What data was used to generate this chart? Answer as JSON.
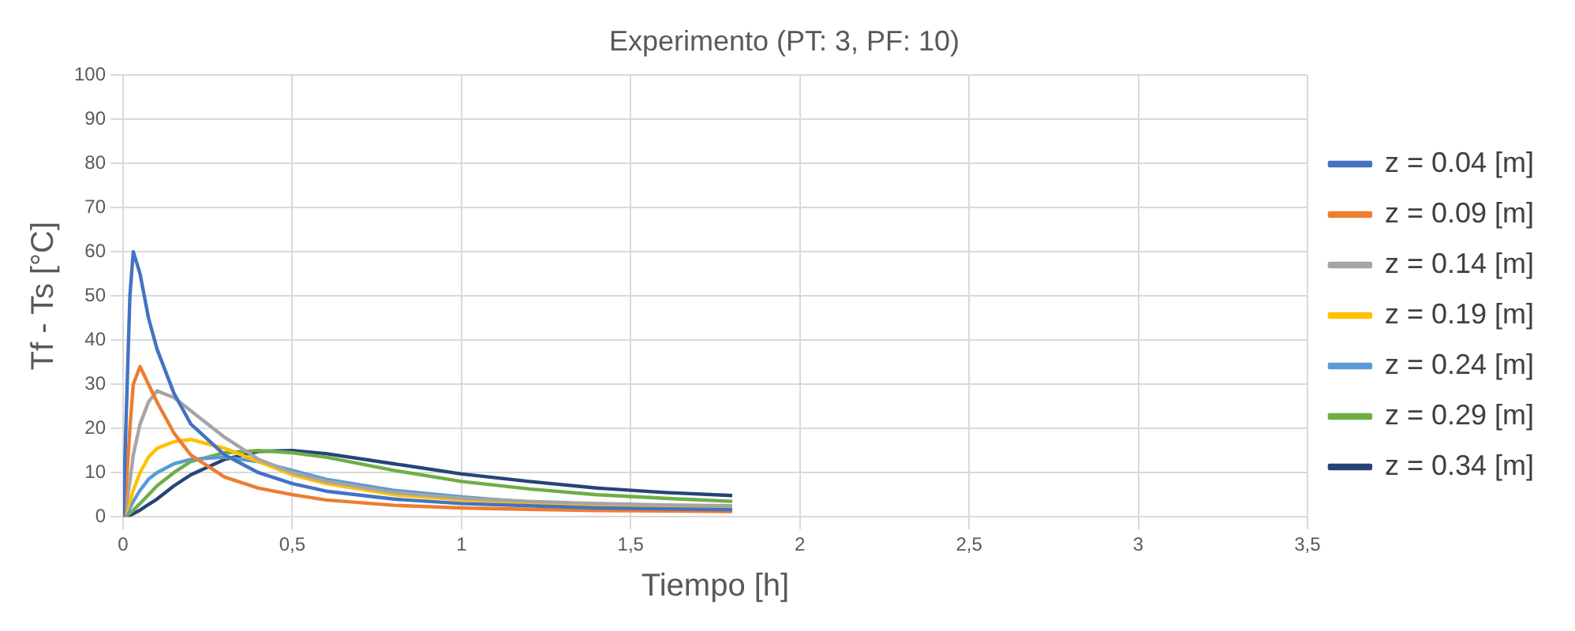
{
  "chart_data": {
    "type": "line",
    "title": "Experimento (PT: 3, PF: 10)",
    "xlabel": "Tiempo [h]",
    "ylabel": "Tf - Ts [°C]",
    "x": [
      0,
      0.01,
      0.02,
      0.03,
      0.05,
      0.075,
      0.1,
      0.15,
      0.2,
      0.3,
      0.4,
      0.5,
      0.6,
      0.8,
      1.0,
      1.2,
      1.4,
      1.6,
      1.8
    ],
    "xlim": [
      0,
      3.5
    ],
    "xticks": [
      0,
      {
        "value": 0.5,
        "label": "0,5"
      },
      1,
      {
        "value": 1.5,
        "label": "1,5"
      },
      2,
      {
        "value": 2.5,
        "label": "2,5"
      },
      3,
      {
        "value": 3.5,
        "label": "3,5"
      }
    ],
    "ylim": [
      0,
      100
    ],
    "yticks": [
      0,
      10,
      20,
      30,
      40,
      50,
      60,
      70,
      80,
      90,
      100
    ],
    "grid": true,
    "legend": "right",
    "marker": "none",
    "line_style": "solid",
    "series": [
      {
        "name": "z = 0.04 [m]",
        "color": "#4472c4",
        "values": [
          0,
          25,
          50,
          60,
          55,
          45,
          38,
          28,
          21,
          14,
          10,
          7.5,
          5.8,
          4,
          3,
          2.5,
          2,
          1.8,
          1.6
        ]
      },
      {
        "name": "z = 0.09 [m]",
        "color": "#ed7d31",
        "values": [
          0,
          8,
          20,
          30,
          34,
          30,
          26,
          19,
          14,
          9,
          6.5,
          5,
          3.8,
          2.6,
          2,
          1.7,
          1.4,
          1.3,
          1.2
        ]
      },
      {
        "name": "z = 0.14 [m]",
        "color": "#a5a5a5",
        "values": [
          0,
          3,
          8,
          14,
          21,
          26,
          28.5,
          27,
          24,
          18,
          13,
          10,
          8,
          5.5,
          4.2,
          3.5,
          3,
          2.7,
          2.5
        ]
      },
      {
        "name": "z = 0.19 [m]",
        "color": "#ffc000",
        "values": [
          0,
          1.5,
          3.5,
          6,
          10,
          13.5,
          15.5,
          17,
          17.5,
          15.5,
          12.5,
          9.5,
          7.5,
          5,
          3.8,
          3.2,
          2.7,
          2.3,
          2.1
        ]
      },
      {
        "name": "z = 0.24 [m]",
        "color": "#5b9bd5",
        "values": [
          0,
          0.8,
          2,
          3.5,
          6,
          8.5,
          10,
          12,
          13,
          13.5,
          12.5,
          10.5,
          8.5,
          6,
          4.5,
          3.3,
          2.5,
          1.9,
          1.5
        ]
      },
      {
        "name": "z = 0.29 [m]",
        "color": "#70ad47",
        "values": [
          0,
          0.3,
          0.8,
          1.5,
          3,
          5,
          7,
          10,
          12.5,
          14.5,
          15,
          14.5,
          13.5,
          10.5,
          8,
          6.3,
          5,
          4.2,
          3.5
        ]
      },
      {
        "name": "z = 0.34 [m]",
        "color": "#264478",
        "values": [
          0,
          0.1,
          0.3,
          0.7,
          1.5,
          2.8,
          4,
          7,
          9.5,
          13,
          14.8,
          15,
          14.3,
          12,
          9.7,
          8,
          6.5,
          5.5,
          4.8
        ]
      }
    ]
  }
}
